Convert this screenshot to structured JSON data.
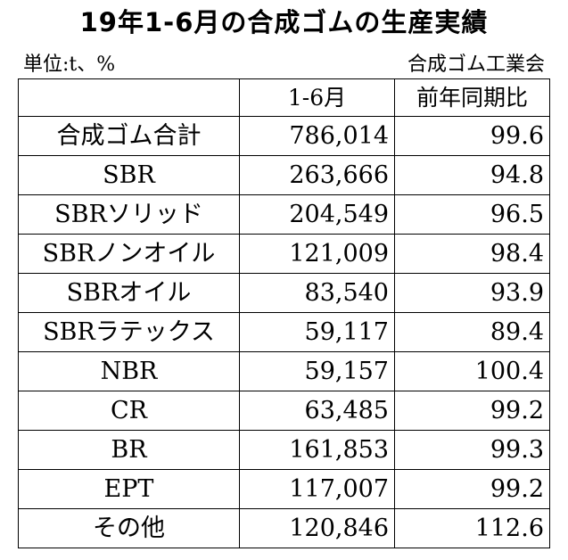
{
  "header": {
    "title": "19年1-6月の合成ゴムの生産実績",
    "unit": "単位:t、%",
    "source": "合成ゴム工業会"
  },
  "table": {
    "columns": [
      "",
      "1-6月",
      "前年同期比"
    ],
    "rows": [
      [
        "合成ゴム合計",
        "786,014",
        "99.6"
      ],
      [
        "SBR",
        "263,666",
        "94.8"
      ],
      [
        "SBRソリッド",
        "204,549",
        "96.5"
      ],
      [
        "SBRノンオイル",
        "121,009",
        "98.4"
      ],
      [
        "SBRオイル",
        "83,540",
        "93.9"
      ],
      [
        "SBRラテックス",
        "59,117",
        "89.4"
      ],
      [
        "NBR",
        "59,157",
        "100.4"
      ],
      [
        "CR",
        "63,485",
        "99.2"
      ],
      [
        "BR",
        "161,853",
        "99.3"
      ],
      [
        "EPT",
        "117,007",
        "99.2"
      ],
      [
        "その他",
        "120,846",
        "112.6"
      ]
    ]
  }
}
